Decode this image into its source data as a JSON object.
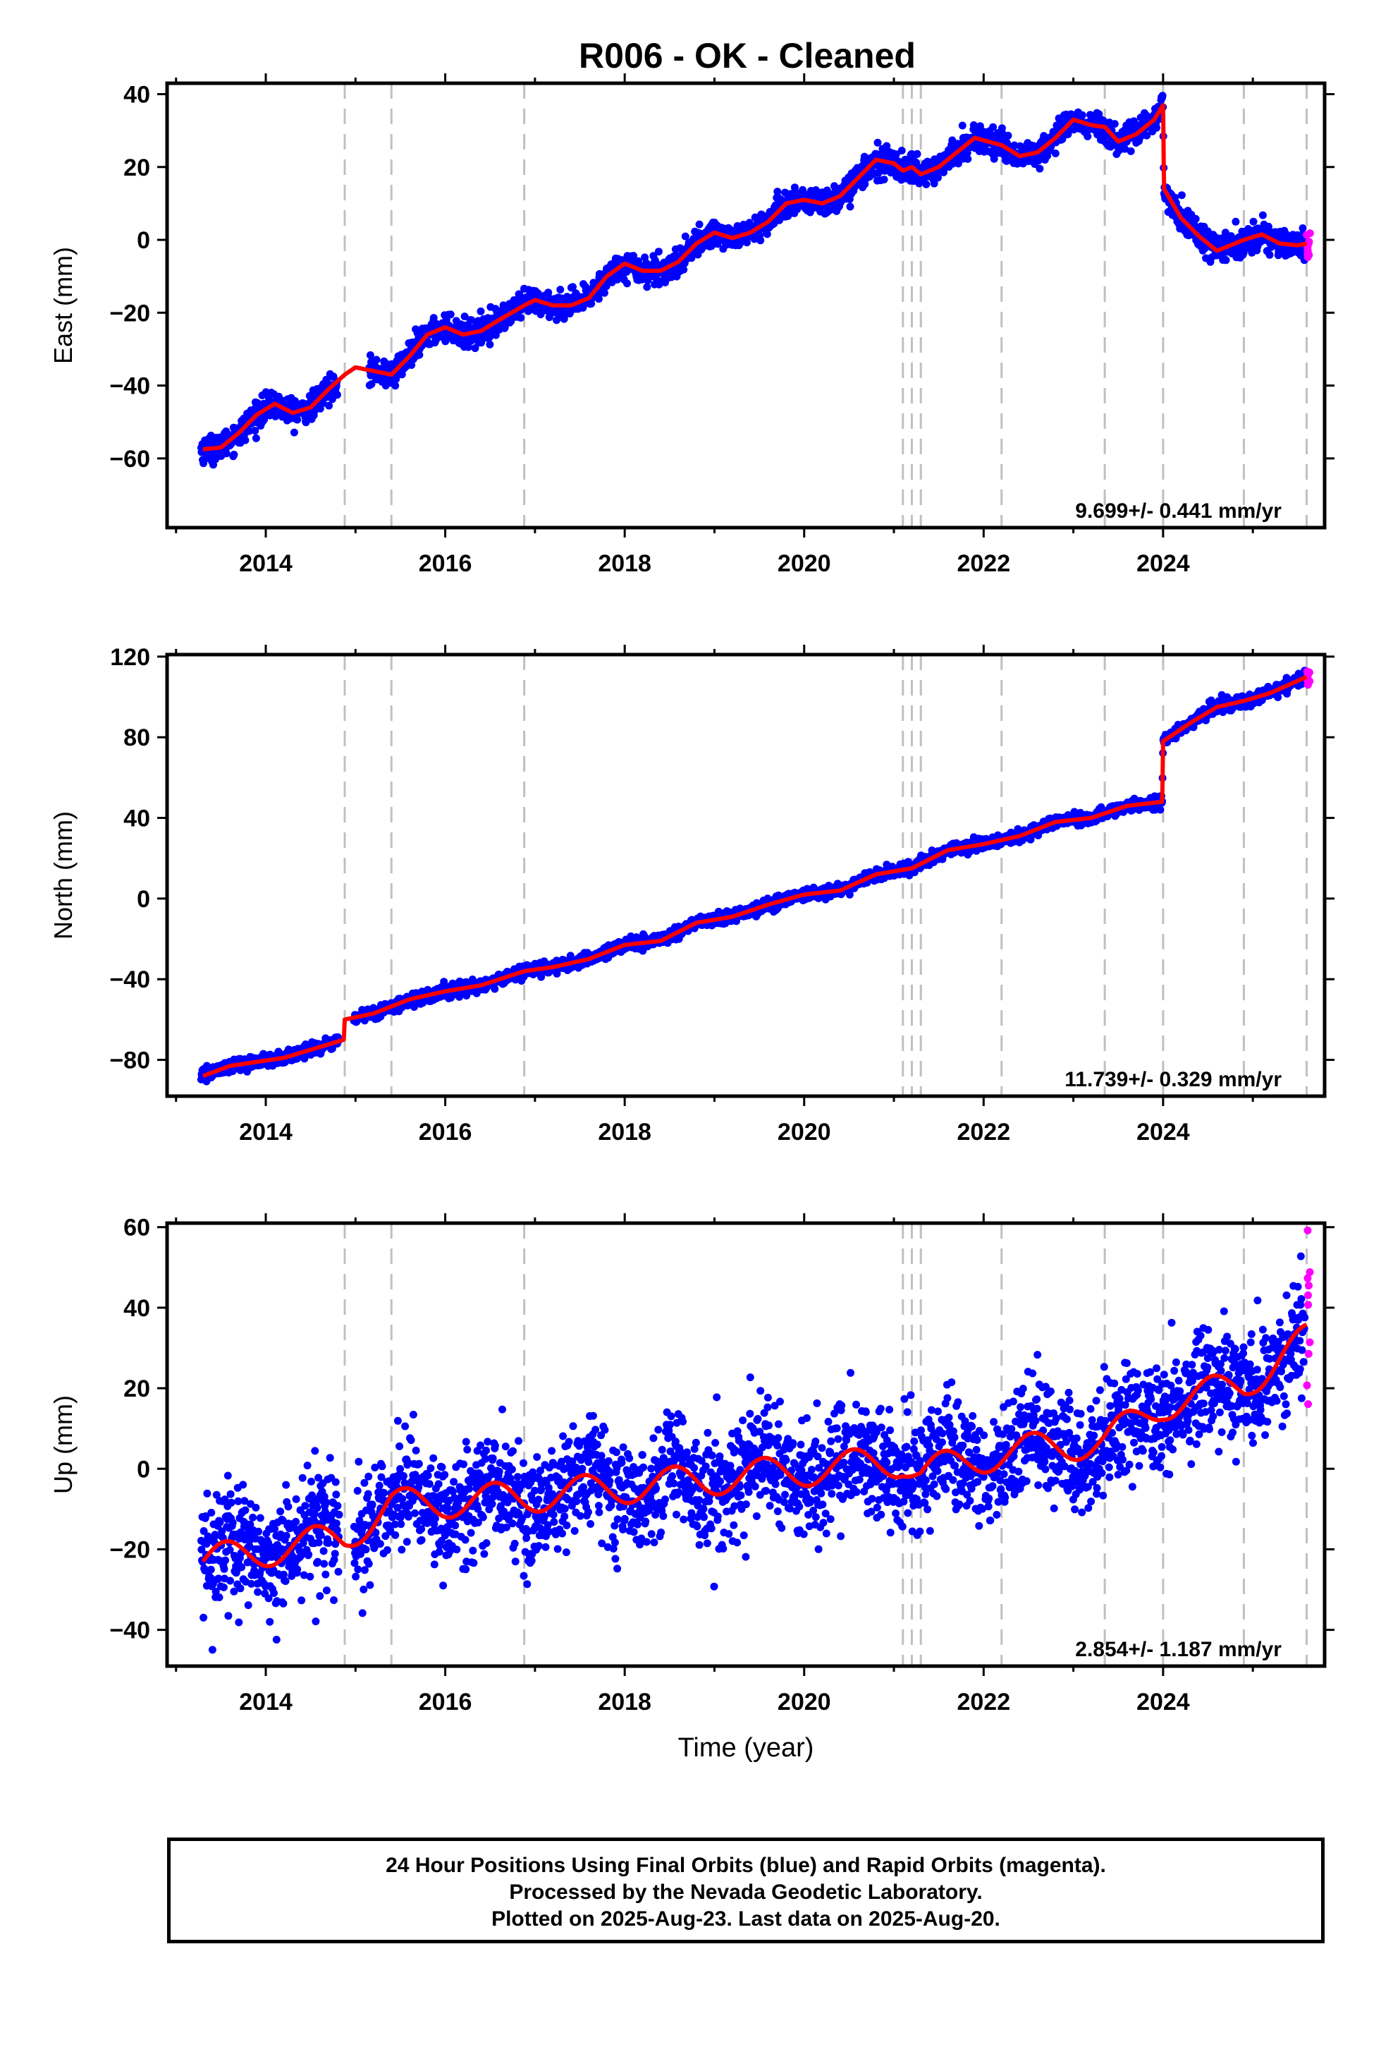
{
  "title": "R006  - OK - Cleaned",
  "colors": {
    "final_orbits": "#0000ff",
    "rapid_orbits": "#ff00ff",
    "model": "#ff0000",
    "steps": "#c0c0c0"
  },
  "xlabel": "Time (year)",
  "footer": {
    "line1": "24 Hour Positions Using Final Orbits (blue) and Rapid Orbits (magenta).",
    "line2": "Processed by the Nevada Geodetic Laboratory.",
    "line3": "Plotted on 2025-Aug-23. Last data on 2025-Aug-20."
  },
  "chart_data": [
    {
      "type": "scatter",
      "component": "east",
      "ylabel": "East (mm)",
      "xlim": [
        2012.9,
        2025.8
      ],
      "ylim": [
        -79,
        43
      ],
      "yticks": [
        -60,
        -40,
        -20,
        0,
        20,
        40
      ],
      "xticks": [
        2014,
        2016,
        2018,
        2020,
        2022,
        2024
      ],
      "step_lines": [
        2014.88,
        2015.4,
        2016.88,
        2021.1,
        2021.2,
        2021.3,
        2022.2,
        2023.35,
        2024.0,
        2024.9,
        2025.6
      ],
      "velocity_label": "9.699+/- 0.441 mm/yr",
      "rate": 9.699,
      "series": [
        {
          "name": "model",
          "x": [
            2013.3,
            2013.5,
            2013.7,
            2013.9,
            2014.1,
            2014.3,
            2014.5,
            2014.7,
            2014.88,
            2015.0,
            2015.2,
            2015.4,
            2015.6,
            2015.8,
            2016.0,
            2016.2,
            2016.4,
            2016.6,
            2016.88,
            2017.0,
            2017.2,
            2017.4,
            2017.6,
            2017.8,
            2018.0,
            2018.2,
            2018.4,
            2018.6,
            2018.8,
            2019.0,
            2019.2,
            2019.4,
            2019.6,
            2019.8,
            2020.0,
            2020.2,
            2020.4,
            2020.6,
            2020.8,
            2021.0,
            2021.1,
            2021.2,
            2021.3,
            2021.5,
            2021.7,
            2021.9,
            2022.2,
            2022.4,
            2022.6,
            2022.8,
            2023.0,
            2023.2,
            2023.35,
            2023.5,
            2023.7,
            2023.9,
            2024.0,
            2024.01,
            2024.2,
            2024.4,
            2024.6,
            2024.9,
            2025.1,
            2025.3,
            2025.5,
            2025.6
          ],
          "values": [
            -57.5,
            -57,
            -53,
            -48,
            -45,
            -47.5,
            -46,
            -41,
            -37,
            -35,
            -36,
            -37,
            -32,
            -26,
            -24,
            -26,
            -25,
            -22,
            -18,
            -16.5,
            -18,
            -18,
            -16,
            -10,
            -6.5,
            -8.5,
            -8.5,
            -6,
            -1,
            2,
            0.5,
            2,
            5,
            10,
            11,
            10,
            12,
            17,
            22,
            21,
            19,
            20,
            18,
            20,
            24,
            28,
            26,
            23,
            24,
            28,
            33,
            31.5,
            31,
            27,
            29,
            33,
            37,
            14,
            6,
            1,
            -3,
            0,
            1.5,
            -1,
            -1.5,
            -1
          ]
        }
      ]
    },
    {
      "type": "scatter",
      "component": "north",
      "ylabel": "North (mm)",
      "xlim": [
        2012.9,
        2025.8
      ],
      "ylim": [
        -98,
        121
      ],
      "yticks": [
        -80,
        -40,
        0,
        40,
        80,
        120
      ],
      "xticks": [
        2014,
        2016,
        2018,
        2020,
        2022,
        2024
      ],
      "step_lines": [
        2014.88,
        2015.4,
        2016.88,
        2021.1,
        2021.2,
        2021.3,
        2022.2,
        2023.35,
        2024.0,
        2024.9,
        2025.6
      ],
      "velocity_label": "11.739+/- 0.329 mm/yr",
      "rate": 11.739,
      "series": [
        {
          "name": "model",
          "x": [
            2013.3,
            2013.6,
            2013.9,
            2014.2,
            2014.5,
            2014.87,
            2014.88,
            2015.2,
            2015.6,
            2016.0,
            2016.4,
            2016.88,
            2017.2,
            2017.6,
            2018.0,
            2018.4,
            2018.8,
            2019.2,
            2019.6,
            2020.0,
            2020.4,
            2020.8,
            2021.2,
            2021.6,
            2022.0,
            2022.4,
            2022.8,
            2023.2,
            2023.6,
            2023.99,
            2024.0,
            2024.3,
            2024.6,
            2024.9,
            2025.2,
            2025.6
          ],
          "values": [
            -88,
            -83,
            -81,
            -79,
            -75,
            -70,
            -60,
            -57,
            -50,
            -46,
            -43,
            -36,
            -34,
            -30,
            -23,
            -21,
            -12,
            -9,
            -3,
            2,
            4,
            12,
            15,
            24,
            27,
            31,
            38,
            40,
            46,
            48,
            78,
            87,
            95,
            98,
            102,
            110
          ]
        }
      ]
    },
    {
      "type": "scatter",
      "component": "up",
      "ylabel": "Up (mm)",
      "xlim": [
        2012.9,
        2025.8
      ],
      "ylim": [
        -49,
        61
      ],
      "yticks": [
        -40,
        -20,
        0,
        20,
        40,
        60
      ],
      "xticks": [
        2014,
        2016,
        2018,
        2020,
        2022,
        2024
      ],
      "step_lines": [
        2014.88,
        2015.4,
        2016.88,
        2021.1,
        2021.2,
        2021.3,
        2022.2,
        2023.35,
        2024.0,
        2024.9,
        2025.6
      ],
      "velocity_label": "2.854+/- 1.187 mm/yr",
      "rate": 2.854,
      "series": [
        {
          "name": "model",
          "annual_amplitude": 4,
          "x": [
            2013.3,
            2014.88,
            2015.4,
            2016.88,
            2021.1,
            2021.3,
            2022.2,
            2023.35,
            2024.0,
            2024.9,
            2025.6
          ],
          "values": [
            -23,
            -17,
            -9,
            -7,
            2,
            -1,
            4,
            7,
            16,
            21,
            32
          ]
        }
      ]
    }
  ]
}
